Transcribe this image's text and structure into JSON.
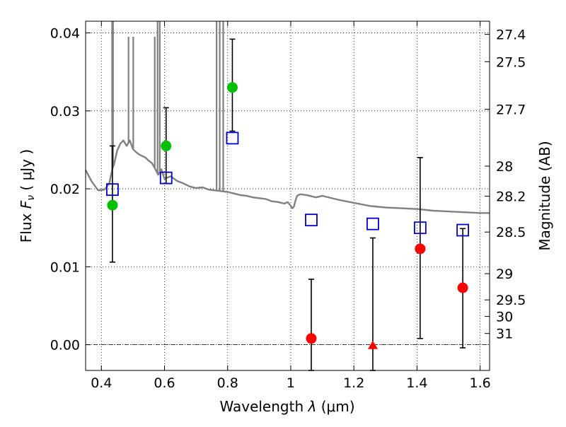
{
  "chart_data": {
    "type": "scatter",
    "title": "",
    "xlabel": "Wavelength",
    "xlabel_symbol": "λ",
    "xlabel_unit": "(μm)",
    "ylabel": "Flux",
    "ylabel_symbol": "F",
    "ylabel_subscript": "ν",
    "ylabel_unit": "( μJy )",
    "y2label": "Magnitude (AB)",
    "xlim": [
      0.35,
      1.63
    ],
    "ylim": [
      -0.0033,
      0.0415
    ],
    "grid": true,
    "x_ticks": [
      {
        "value": 0.4,
        "label": "0.4"
      },
      {
        "value": 0.6,
        "label": "0.6"
      },
      {
        "value": 0.8,
        "label": "0.8"
      },
      {
        "value": 1.0,
        "label": "1"
      },
      {
        "value": 1.2,
        "label": "1.2"
      },
      {
        "value": 1.4,
        "label": "1.4"
      },
      {
        "value": 1.6,
        "label": "1.6"
      }
    ],
    "y_ticks": [
      {
        "value": 0.0,
        "label": "0.00"
      },
      {
        "value": 0.01,
        "label": "0.01"
      },
      {
        "value": 0.02,
        "label": "0.02"
      },
      {
        "value": 0.03,
        "label": "0.03"
      },
      {
        "value": 0.04,
        "label": "0.04"
      }
    ],
    "y2_ticks": [
      {
        "mag": 27.4,
        "label": "27.4"
      },
      {
        "mag": 27.5,
        "label": "27.5"
      },
      {
        "mag": 27.7,
        "label": "27.7"
      },
      {
        "mag": 28,
        "label": "28"
      },
      {
        "mag": 28.2,
        "label": "28.2"
      },
      {
        "mag": 28.5,
        "label": "28.5"
      },
      {
        "mag": 29,
        "label": "29"
      },
      {
        "mag": 29.5,
        "label": "29.5"
      },
      {
        "mag": 30,
        "label": "30"
      },
      {
        "mag": 31,
        "label": "31"
      }
    ],
    "colors": {
      "model": "#808080",
      "detection": "#00c000",
      "nondetection": "#ff0000",
      "model_photometry": "#0000cc",
      "errorbar": "#000000"
    },
    "model_spectrum": {
      "x": [
        0.35,
        0.37,
        0.39,
        0.41,
        0.425,
        0.435,
        0.44,
        0.45,
        0.46,
        0.47,
        0.48,
        0.49,
        0.5,
        0.51,
        0.52,
        0.53,
        0.54,
        0.55,
        0.56,
        0.57,
        0.58,
        0.59,
        0.6,
        0.62,
        0.64,
        0.66,
        0.68,
        0.7,
        0.72,
        0.74,
        0.76,
        0.78,
        0.8,
        0.82,
        0.84,
        0.86,
        0.88,
        0.9,
        0.92,
        0.94,
        0.96,
        0.98,
        0.99,
        1.0,
        1.005,
        1.01,
        1.015,
        1.02,
        1.03,
        1.05,
        1.08,
        1.1,
        1.15,
        1.2,
        1.25,
        1.3,
        1.35,
        1.4,
        1.45,
        1.5,
        1.55,
        1.6,
        1.63
      ],
      "y": [
        0.0224,
        0.0209,
        0.0198,
        0.0199,
        0.0207,
        0.0226,
        0.0231,
        0.0249,
        0.0258,
        0.0262,
        0.0255,
        0.0262,
        0.0251,
        0.0247,
        0.0244,
        0.0242,
        0.024,
        0.0236,
        0.0233,
        0.0226,
        0.0218,
        0.0225,
        0.0213,
        0.0216,
        0.021,
        0.0207,
        0.0203,
        0.0201,
        0.0202,
        0.0199,
        0.0198,
        0.0197,
        0.0196,
        0.0194,
        0.0192,
        0.0191,
        0.0189,
        0.0188,
        0.0187,
        0.0184,
        0.0183,
        0.0181,
        0.0183,
        0.0178,
        0.0175,
        0.0177,
        0.0185,
        0.0191,
        0.0193,
        0.0192,
        0.0189,
        0.0191,
        0.0186,
        0.0182,
        0.0178,
        0.0176,
        0.0175,
        0.0174,
        0.0172,
        0.0171,
        0.017,
        0.0169,
        0.0169
      ]
    },
    "emission_lines": [
      {
        "x": 0.434,
        "peak": 0.0415
      },
      {
        "x": 0.437,
        "peak": 0.0415
      },
      {
        "x": 0.486,
        "peak": 0.0395
      },
      {
        "x": 0.501,
        "peak": 0.0395
      },
      {
        "x": 0.569,
        "peak": 0.0395
      },
      {
        "x": 0.578,
        "peak": 0.0415
      },
      {
        "x": 0.585,
        "peak": 0.0415
      },
      {
        "x": 0.765,
        "peak": 0.0415
      },
      {
        "x": 0.775,
        "peak": 0.0415
      },
      {
        "x": 0.786,
        "peak": 0.0415
      }
    ],
    "series": [
      {
        "marker": "circle",
        "color": "#00c000",
        "x": [
          0.435,
          0.605,
          0.815
        ],
        "y": [
          0.0179,
          0.0255,
          0.033
        ],
        "yerr": [
          [
            0.0106,
            0.0255
          ],
          [
            0.0207,
            0.0304
          ],
          [
            0.0274,
            0.0392
          ]
        ]
      },
      {
        "marker": "circle",
        "color": "#ff0000",
        "x": [
          1.065,
          1.41,
          1.545
        ],
        "y": [
          0.0008,
          0.0123,
          0.0073
        ],
        "yerr": [
          [
            -0.0033,
            0.0084
          ],
          [
            0.0008,
            0.024
          ],
          [
            -0.0004,
            0.0149
          ]
        ]
      },
      {
        "marker": "triangle",
        "color": "#ff0000",
        "x": [
          1.26
        ],
        "y": [
          -0.0001
        ],
        "yerr": [
          [
            -0.0033,
            0.0137
          ]
        ]
      },
      {
        "marker": "square",
        "color": "#0000cc",
        "x": [
          0.435,
          0.605,
          0.815,
          1.065,
          1.26,
          1.41,
          1.545
        ],
        "y": [
          0.0199,
          0.0214,
          0.0265,
          0.016,
          0.0155,
          0.015,
          0.0147
        ]
      }
    ]
  }
}
